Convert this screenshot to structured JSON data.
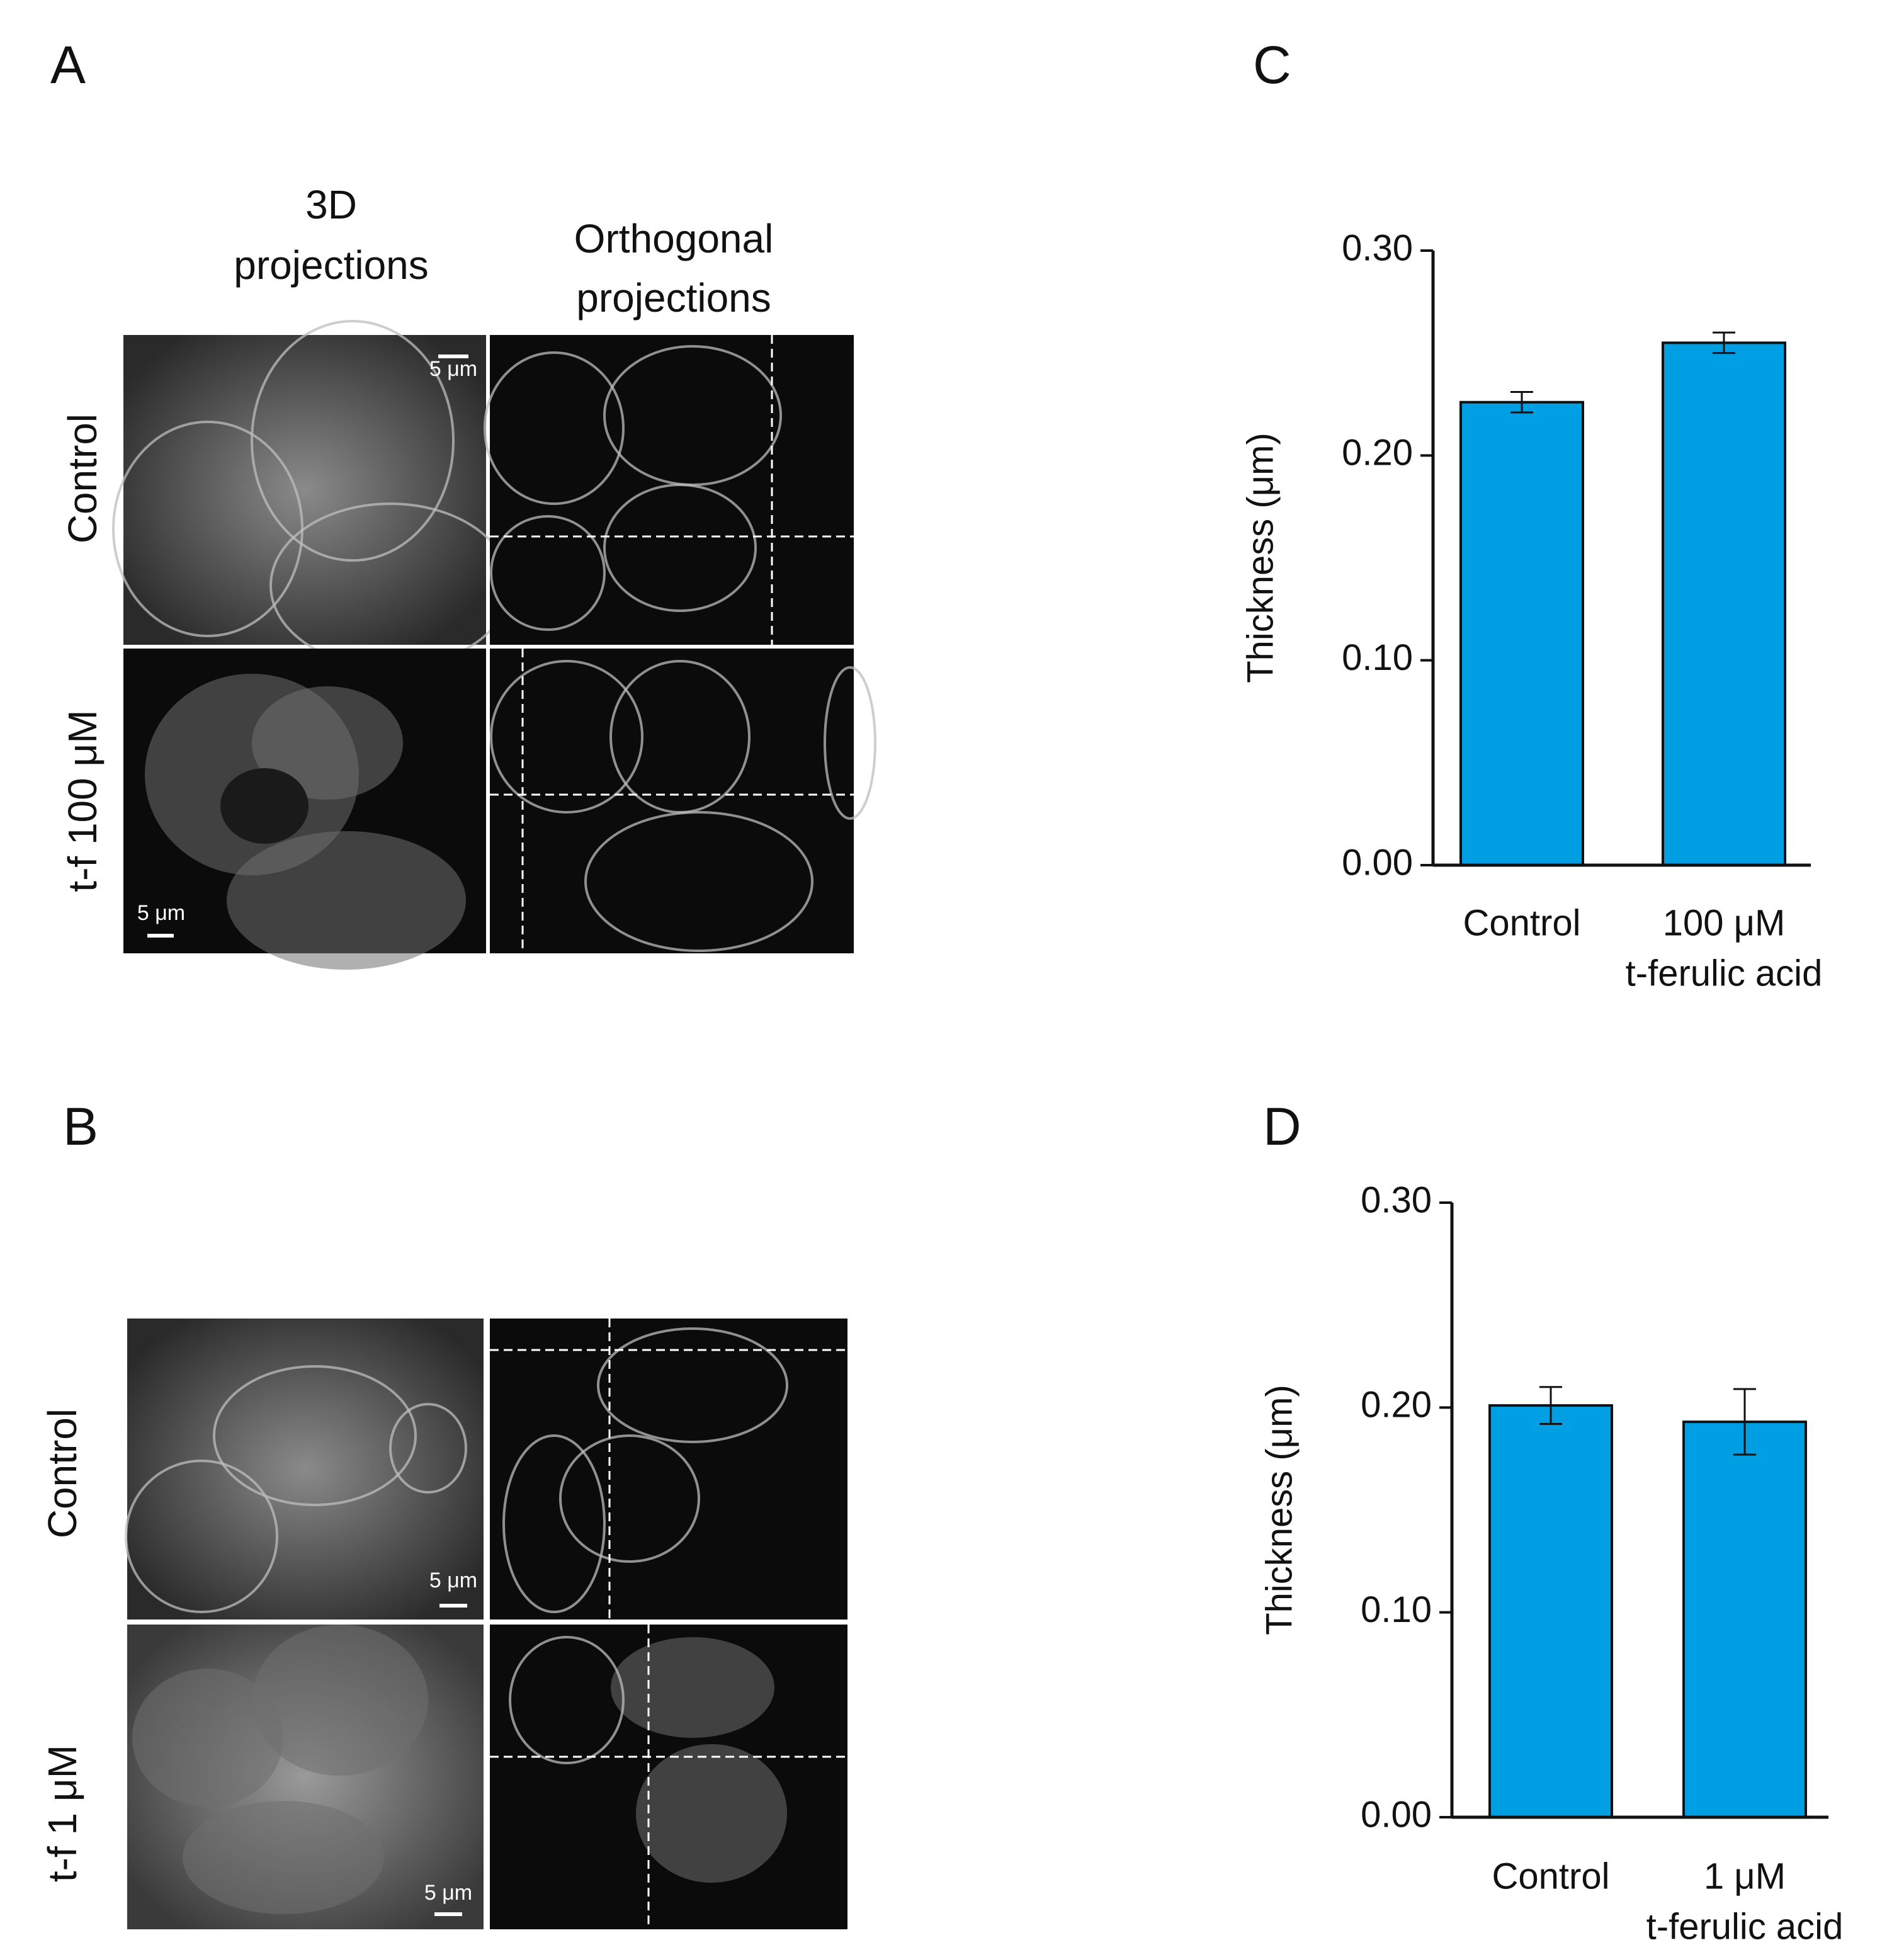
{
  "panel_labels": [
    "A",
    "B",
    "C",
    "D"
  ],
  "panel_a": {
    "column_headers": [
      [
        "3D",
        "projections"
      ],
      [
        "Orthogonal",
        "projections"
      ]
    ],
    "row_labels": [
      "Control",
      "t-f 100 μM"
    ],
    "scale_bars": [
      "5 μm",
      "5 μm"
    ]
  },
  "panel_b": {
    "row_labels": [
      "Control",
      "t-f 1 μM"
    ],
    "scale_bars": [
      "5 μm",
      "5 μm"
    ]
  },
  "chart_data": [
    {
      "type": "bar",
      "y_label": "Thickness (μm)",
      "categories": [
        [
          "Control"
        ],
        [
          "100 μM",
          "t-ferulic acid"
        ]
      ],
      "values": [
        0.226,
        0.255
      ],
      "errors": [
        0.005,
        0.005
      ],
      "color": "#009fe3",
      "ylim": [
        0,
        0.3
      ],
      "yticks": [
        {
          "value": 0,
          "label": "0.00"
        },
        {
          "value": 0.1,
          "label": "0.10"
        },
        {
          "value": 0.2,
          "label": "0.20"
        },
        {
          "value": 0.3,
          "label": "0.30"
        }
      ]
    },
    {
      "type": "bar",
      "y_label": "Thickness (μm)",
      "categories": [
        [
          "Control"
        ],
        [
          "1 μM",
          "t-ferulic acid"
        ]
      ],
      "values": [
        0.201,
        0.193
      ],
      "errors": [
        0.009,
        0.016
      ],
      "color": "#009fe3",
      "ylim": [
        0,
        0.3
      ],
      "yticks": [
        {
          "value": 0,
          "label": "0.00"
        },
        {
          "value": 0.1,
          "label": "0.10"
        },
        {
          "value": 0.2,
          "label": "0.20"
        },
        {
          "value": 0.3,
          "label": "0.30"
        }
      ]
    }
  ]
}
